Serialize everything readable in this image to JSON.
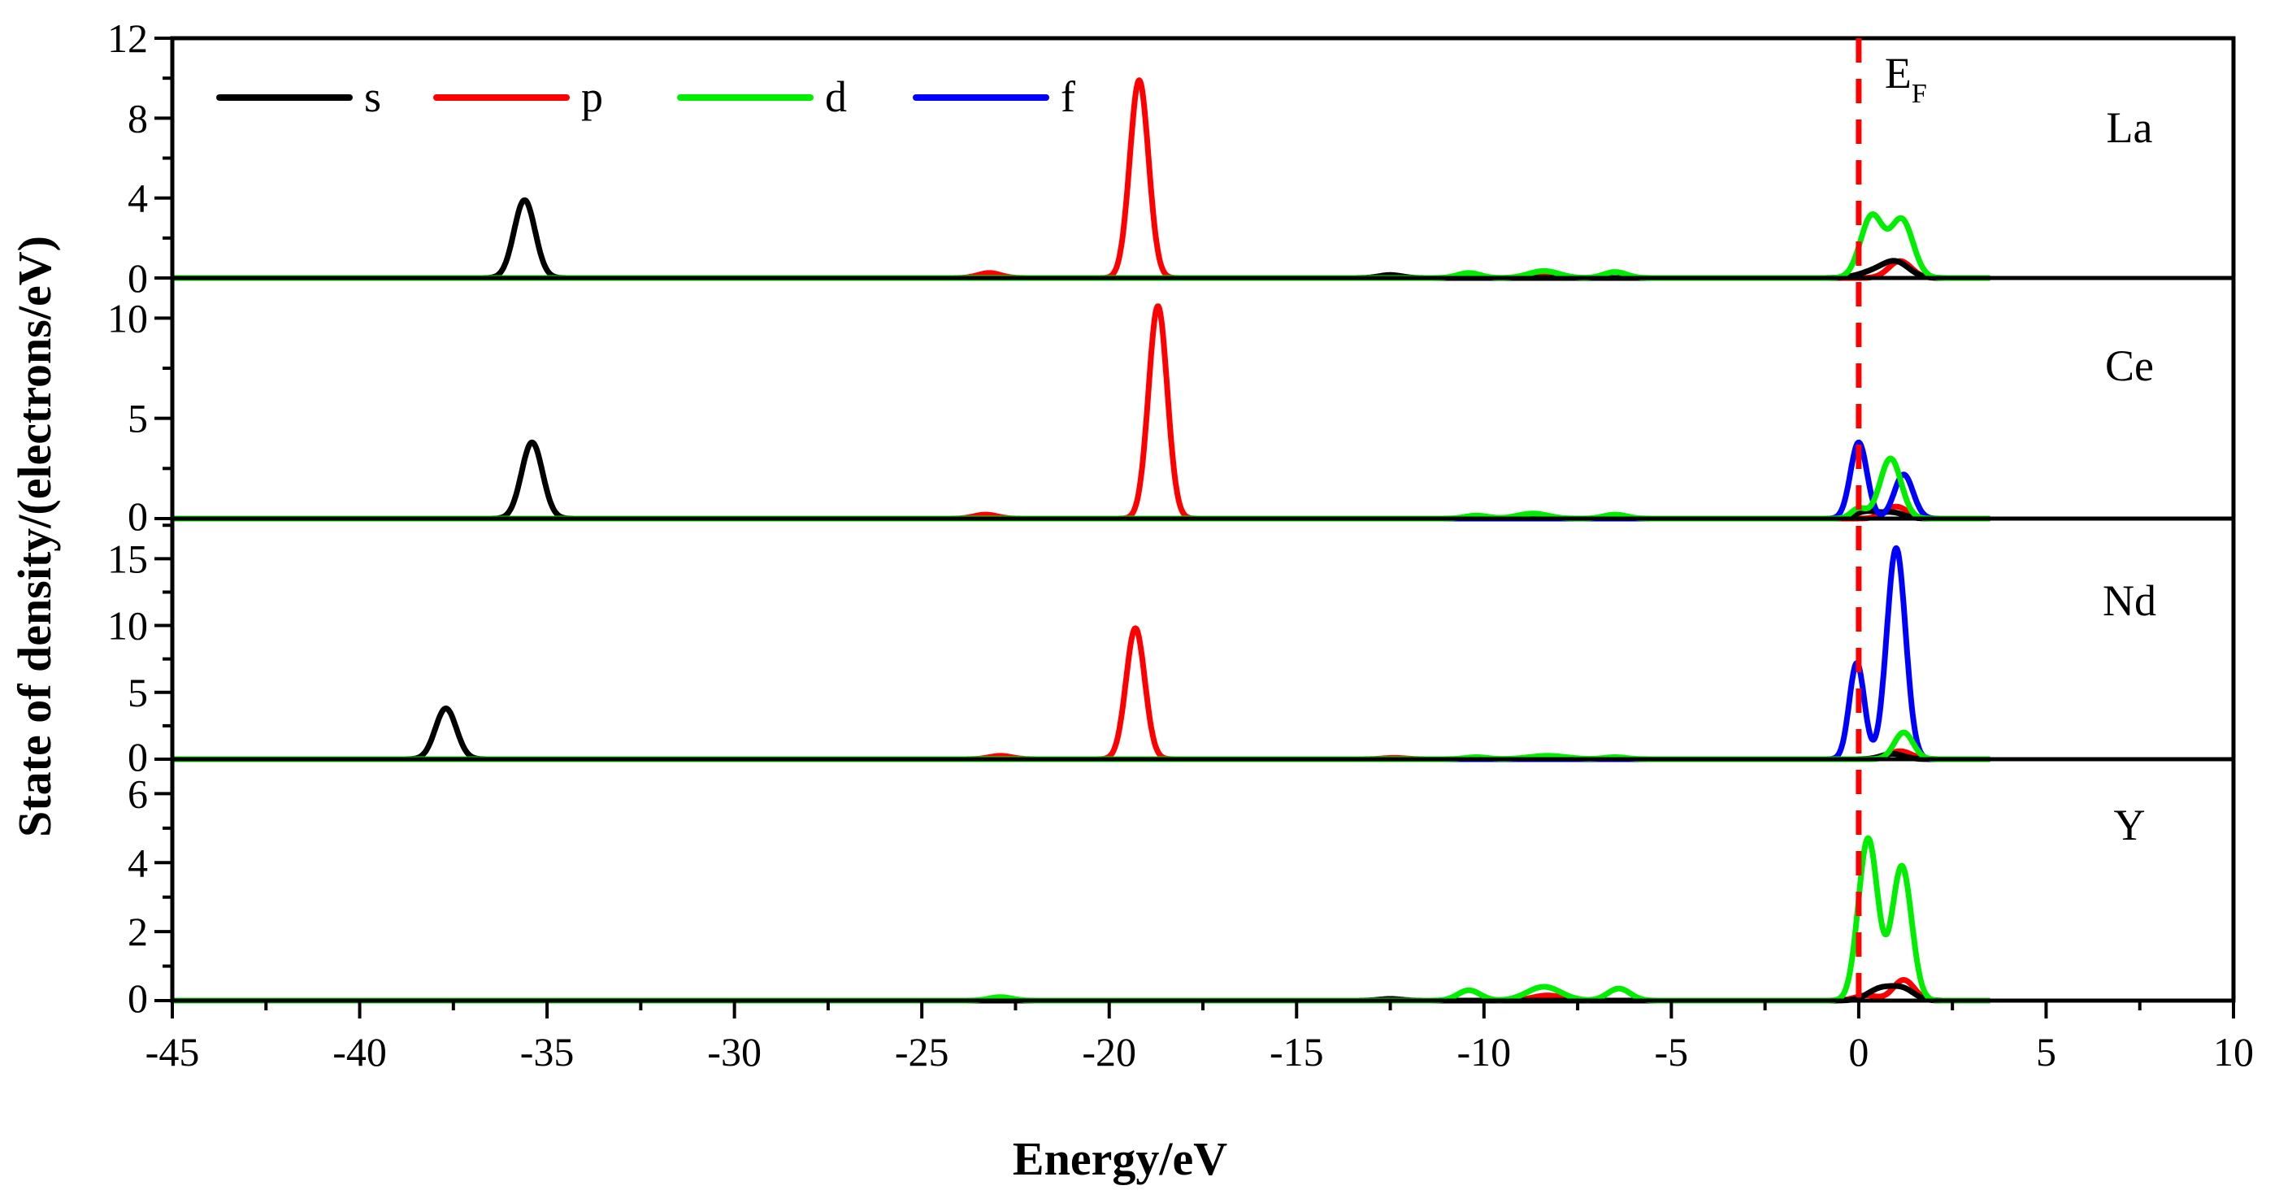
{
  "chart_data": {
    "type": "line",
    "title": "",
    "xlabel": "Energy/eV",
    "ylabel": "State of density/(electrons/eV)",
    "xlim": [
      -45,
      10
    ],
    "xticks": [
      "-45",
      "-40",
      "-35",
      "-30",
      "-25",
      "-20",
      "-15",
      "-10",
      "-5",
      "0",
      "5",
      "10"
    ],
    "x_data_range": [
      -45,
      3.5
    ],
    "grid": false,
    "legend": {
      "placement": "top-left",
      "entries": [
        {
          "label": "s",
          "color": "#000000"
        },
        {
          "label": "p",
          "color": "#ff0000"
        },
        {
          "label": "d",
          "color": "#00ee00"
        },
        {
          "label": "f",
          "color": "#0000ff"
        }
      ]
    },
    "fermi_level": {
      "x": 0,
      "label": "E",
      "subscript": "F",
      "color": "#ff0000",
      "style": "dashed"
    },
    "panels": [
      {
        "label": "La",
        "ylim": [
          0,
          12
        ],
        "yticks": [
          "0",
          "4",
          "8",
          "12"
        ],
        "series": [
          {
            "orbital": "s",
            "peaks": [
              [
                -35.6,
                3.9,
                0.28
              ],
              [
                -12.5,
                0.15,
                0.3
              ],
              [
                0.4,
                0.3,
                0.4
              ],
              [
                1.0,
                0.75,
                0.35
              ]
            ]
          },
          {
            "orbital": "p",
            "peaks": [
              [
                -19.2,
                9.9,
                0.25
              ],
              [
                -23.2,
                0.25,
                0.3
              ],
              [
                -8.3,
                0.15,
                0.35
              ],
              [
                1.1,
                0.85,
                0.3
              ]
            ]
          },
          {
            "orbital": "d",
            "peaks": [
              [
                -10.4,
                0.25,
                0.3
              ],
              [
                -8.4,
                0.35,
                0.4
              ],
              [
                -6.5,
                0.3,
                0.3
              ],
              [
                0.35,
                3.1,
                0.3
              ],
              [
                1.15,
                2.9,
                0.3
              ]
            ]
          },
          {
            "orbital": "f",
            "peaks": []
          }
        ]
      },
      {
        "label": "Ce",
        "ylim": [
          0,
          12
        ],
        "yticks": [
          "0",
          "5",
          "10"
        ],
        "series": [
          {
            "orbital": "s",
            "peaks": [
              [
                -35.4,
                3.8,
                0.28
              ],
              [
                0.2,
                0.35,
                0.3
              ],
              [
                0.9,
                0.3,
                0.3
              ]
            ]
          },
          {
            "orbital": "p",
            "peaks": [
              [
                -18.7,
                10.6,
                0.25
              ],
              [
                -23.3,
                0.2,
                0.3
              ],
              [
                1.0,
                0.6,
                0.3
              ]
            ]
          },
          {
            "orbital": "d",
            "peaks": [
              [
                -10.2,
                0.15,
                0.3
              ],
              [
                -8.7,
                0.25,
                0.4
              ],
              [
                -6.5,
                0.2,
                0.3
              ],
              [
                0.85,
                3.0,
                0.28
              ],
              [
                0.0,
                0.5,
                0.2
              ]
            ]
          },
          {
            "orbital": "f",
            "peaks": [
              [
                0.0,
                3.8,
                0.22
              ],
              [
                1.2,
                2.2,
                0.25
              ]
            ]
          }
        ]
      },
      {
        "label": "Nd",
        "ylim": [
          0,
          18
        ],
        "yticks": [
          "0",
          "5",
          "10",
          "15"
        ],
        "series": [
          {
            "orbital": "s",
            "peaks": [
              [
                -37.7,
                3.8,
                0.28
              ],
              [
                0.9,
                0.4,
                0.3
              ]
            ]
          },
          {
            "orbital": "p",
            "peaks": [
              [
                -19.3,
                9.8,
                0.25
              ],
              [
                -22.9,
                0.25,
                0.3
              ],
              [
                -12.4,
                0.1,
                0.3
              ],
              [
                1.1,
                0.6,
                0.3
              ]
            ]
          },
          {
            "orbital": "d",
            "peaks": [
              [
                -10.2,
                0.15,
                0.3
              ],
              [
                -8.3,
                0.25,
                0.5
              ],
              [
                -6.5,
                0.15,
                0.3
              ],
              [
                1.2,
                2.0,
                0.25
              ]
            ]
          },
          {
            "orbital": "f",
            "peaks": [
              [
                -0.05,
                7.2,
                0.2
              ],
              [
                1.0,
                15.8,
                0.25
              ]
            ]
          }
        ]
      },
      {
        "label": "Y",
        "ylim": [
          0,
          7
        ],
        "yticks": [
          "0",
          "2",
          "4",
          "6"
        ],
        "series": [
          {
            "orbital": "s",
            "peaks": [
              [
                -12.5,
                0.05,
                0.3
              ],
              [
                0.6,
                0.35,
                0.35
              ],
              [
                1.2,
                0.3,
                0.3
              ]
            ]
          },
          {
            "orbital": "p",
            "peaks": [
              [
                -8.3,
                0.15,
                0.4
              ],
              [
                0.2,
                0.15,
                0.3
              ],
              [
                1.2,
                0.6,
                0.28
              ]
            ]
          },
          {
            "orbital": "d",
            "peaks": [
              [
                -22.9,
                0.1,
                0.3
              ],
              [
                -10.4,
                0.3,
                0.3
              ],
              [
                -8.4,
                0.4,
                0.45
              ],
              [
                -6.4,
                0.35,
                0.3
              ],
              [
                0.25,
                4.7,
                0.26
              ],
              [
                1.15,
                3.9,
                0.26
              ]
            ]
          },
          {
            "orbital": "f",
            "peaks": []
          }
        ]
      }
    ]
  }
}
